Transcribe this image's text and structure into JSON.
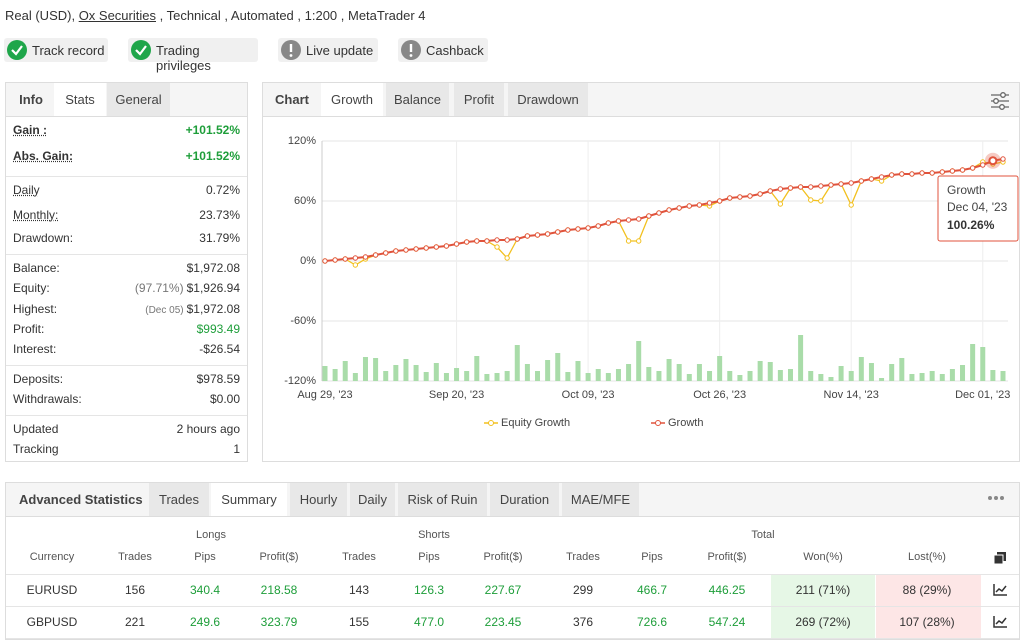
{
  "header": {
    "parts": [
      "Real (USD), ",
      "Ox Securities",
      " , Technical , Automated , 1:200 , MetaTrader 4"
    ]
  },
  "badges": [
    "Track record",
    "Trading privileges",
    "Live update",
    "Cashback"
  ],
  "stats_panel": {
    "tabs": [
      "Info",
      "Stats",
      "General"
    ],
    "groups": [
      [
        {
          "label": "Gain :",
          "value": "+101.52%"
        },
        {
          "label": "Abs. Gain:",
          "value": "+101.52%"
        }
      ],
      [
        {
          "label": "Daily",
          "value": "0.72%"
        },
        {
          "label": "Monthly:",
          "value": "23.73%"
        },
        {
          "label": "Drawdown:",
          "value": "31.79%"
        }
      ],
      [
        {
          "label": "Balance:",
          "value": "$1,972.08"
        },
        {
          "label": "Equity:",
          "note": "(97.71%)",
          "value": "$1,926.94"
        },
        {
          "label": "Highest:",
          "note": "(Dec 05)",
          "value": "$1,972.08"
        },
        {
          "label": "Profit:",
          "value": "$993.49"
        },
        {
          "label": "Interest:",
          "value": "-$26.54"
        }
      ],
      [
        {
          "label": "Deposits:",
          "value": "$978.59"
        },
        {
          "label": "Withdrawals:",
          "value": "$0.00"
        }
      ],
      [
        {
          "label": "Updated",
          "value": "2 hours ago"
        },
        {
          "label": "Tracking",
          "value": "1"
        }
      ]
    ]
  },
  "chart_panel": {
    "tabs": [
      "Chart",
      "Growth",
      "Balance",
      "Profit",
      "Drawdown"
    ]
  },
  "chart_data": {
    "type": "line",
    "categories": [
      "Aug 29, '23",
      null,
      null,
      null,
      null,
      null,
      null,
      null,
      null,
      null,
      null,
      null,
      null,
      "Sep 20, '23",
      null,
      null,
      null,
      null,
      null,
      null,
      null,
      null,
      null,
      null,
      null,
      null,
      "Oct 09, '23",
      null,
      null,
      null,
      null,
      null,
      null,
      null,
      null,
      null,
      null,
      null,
      null,
      "Oct 26, '23",
      null,
      null,
      null,
      null,
      null,
      null,
      null,
      null,
      null,
      null,
      null,
      null,
      "Nov 14, '23",
      null,
      null,
      null,
      null,
      null,
      null,
      null,
      null,
      null,
      null,
      null,
      null,
      "Dec 01, '23",
      null,
      null
    ],
    "ylim": [
      -120,
      120
    ],
    "yticks": [
      {
        "value": 120,
        "label": "120%"
      },
      {
        "value": 60,
        "label": "60%"
      },
      {
        "value": 0,
        "label": "0%"
      },
      {
        "value": -60,
        "label": "-60%"
      },
      {
        "value": -120,
        "label": "-120%"
      }
    ],
    "grid": true,
    "series": [
      {
        "name": "Equity Growth",
        "color": "#f2c01e",
        "values": [
          0,
          1,
          2,
          -4,
          2,
          6,
          8,
          10,
          11,
          12,
          13,
          14,
          15,
          17,
          19,
          20,
          20,
          14,
          3,
          22,
          25,
          26,
          27,
          29,
          31,
          32,
          33,
          35,
          38,
          40,
          20,
          20,
          45,
          48,
          51,
          53,
          55,
          56,
          55,
          60,
          63,
          64,
          65,
          67,
          70,
          57,
          73,
          74,
          61,
          60,
          76,
          77,
          56,
          80,
          82,
          80,
          86,
          87,
          87,
          88,
          88,
          89,
          90,
          91,
          93,
          99,
          97,
          99
        ]
      },
      {
        "name": "Growth",
        "color": "#e0533c",
        "values": [
          0,
          1,
          2,
          3,
          4,
          6,
          8,
          10,
          11,
          12,
          13,
          14,
          15,
          17,
          19,
          20,
          20,
          21,
          21,
          22,
          25,
          26,
          27,
          29,
          31,
          32,
          33,
          35,
          38,
          40,
          41,
          42,
          45,
          48,
          51,
          53,
          55,
          56,
          58,
          60,
          63,
          64,
          65,
          67,
          70,
          72,
          73,
          74,
          74,
          75,
          76,
          77,
          78,
          80,
          82,
          84,
          86,
          87,
          87,
          88,
          88,
          89,
          90,
          91,
          93,
          96,
          100.26,
          102
        ]
      },
      {
        "type": "bar",
        "color": "#a9dca9",
        "values": [
          -105,
          -108,
          -100,
          -112,
          -96,
          -97,
          -110,
          -104,
          -98,
          -104,
          -111,
          -102,
          -112,
          -107,
          -110,
          -95,
          -113,
          -112,
          -110,
          -84,
          -103,
          -110,
          -99,
          -92,
          -111,
          -100,
          -112,
          -108,
          -112,
          -108,
          -103,
          -80,
          -106,
          -110,
          -98,
          -103,
          -113,
          -103,
          -110,
          -95,
          -110,
          -114,
          -110,
          -100,
          -101,
          -109,
          -108,
          -74,
          -110,
          -113,
          -116,
          -105,
          -110,
          -96,
          -102,
          -117,
          -103,
          -97,
          -113,
          -112,
          -110,
          -113,
          -108,
          -104,
          -83,
          -86,
          -109,
          -110
        ]
      }
    ],
    "tooltip": {
      "series": "Growth",
      "date": "Dec 04, '23",
      "value": "100.26%",
      "index": 66
    }
  },
  "advanced": {
    "title": "Advanced Statistics",
    "tabs": [
      "Trades",
      "Summary",
      "Hourly",
      "Daily",
      "Risk of Ruin",
      "Duration",
      "MAE/MFE"
    ],
    "table": {
      "groups": [
        "Longs",
        "Shorts",
        "Total"
      ],
      "columns": [
        "Currency",
        "Trades",
        "Pips",
        "Profit($)",
        "Trades",
        "Pips",
        "Profit($)",
        "Trades",
        "Pips",
        "Profit($)",
        "Won(%)",
        "Lost(%)"
      ],
      "rows": [
        [
          "EURUSD",
          "156",
          "340.4",
          "218.58",
          "143",
          "126.3",
          "227.67",
          "299",
          "466.7",
          "446.25",
          "211 (71%)",
          "88 (29%)"
        ],
        [
          "GBPUSD",
          "221",
          "249.6",
          "323.79",
          "155",
          "477.0",
          "223.45",
          "376",
          "726.6",
          "547.24",
          "269 (72%)",
          "107 (28%)"
        ]
      ]
    }
  }
}
